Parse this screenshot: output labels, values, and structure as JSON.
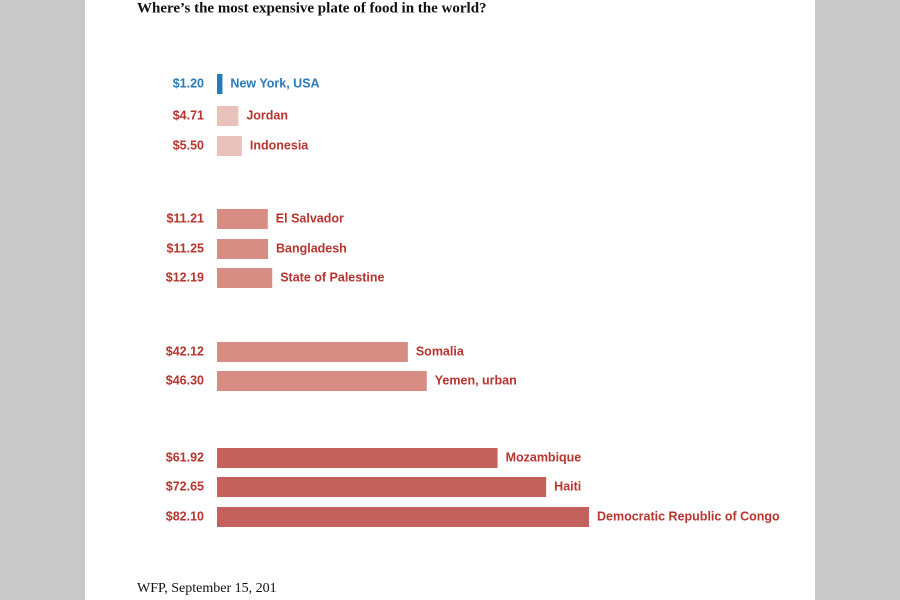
{
  "chart_data": {
    "type": "bar",
    "orientation": "horizontal",
    "title": "Where’s the most expensive plate of food in the world?",
    "source": "WFP, September 15, 201",
    "categories": [
      "New York, USA",
      "Jordan",
      "Indonesia",
      "El Salvador",
      "Bangladesh",
      "State of Palestine",
      "Somalia",
      "Yemen, urban",
      "Mozambique",
      "Haiti",
      "Democratic Republic of Congo"
    ],
    "values": [
      1.2,
      4.71,
      5.5,
      11.21,
      11.25,
      12.19,
      42.12,
      46.3,
      61.92,
      72.65,
      82.1
    ],
    "value_labels": [
      "$1.20",
      "$4.71",
      "$5.50",
      "$11.21",
      "$11.25",
      "$12.19",
      "$42.12",
      "$46.30",
      "$61.92",
      "$72.65",
      "$82.10"
    ],
    "colors": [
      "#2a79b9",
      "#e9c3bb",
      "#e9c3bb",
      "#d78d83",
      "#d78d83",
      "#d78d83",
      "#d78d83",
      "#d78d83",
      "#c3625c",
      "#c3625c",
      "#c3625c"
    ],
    "label_colors": [
      "#2a79b9",
      "#b8342f",
      "#b8342f",
      "#b8342f",
      "#b8342f",
      "#b8342f",
      "#b8342f",
      "#b8342f",
      "#b8342f",
      "#b8342f",
      "#b8342f"
    ]
  }
}
